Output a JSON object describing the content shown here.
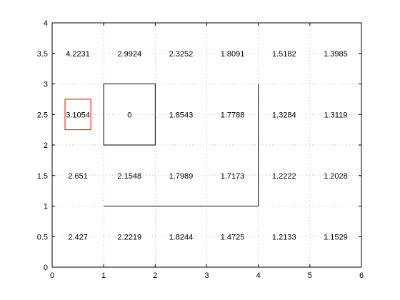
{
  "chart_data": {
    "type": "heatmap",
    "title": "",
    "xlabel": "",
    "ylabel": "",
    "xlim": [
      0,
      6
    ],
    "ylim": [
      0,
      4
    ],
    "grid": true,
    "x_ticks": [
      "0",
      "1",
      "2",
      "3",
      "4",
      "5",
      "6"
    ],
    "y_ticks": [
      "0",
      "0.5",
      "1",
      "1.5",
      "2",
      "2.5",
      "3",
      "3.5",
      "4"
    ],
    "cells": [
      {
        "x": 0.5,
        "y": 3.5,
        "label": "4.2231"
      },
      {
        "x": 1.5,
        "y": 3.5,
        "label": "2.9924"
      },
      {
        "x": 2.5,
        "y": 3.5,
        "label": "2.3252"
      },
      {
        "x": 3.5,
        "y": 3.5,
        "label": "1.8091"
      },
      {
        "x": 4.5,
        "y": 3.5,
        "label": "1.5182"
      },
      {
        "x": 5.5,
        "y": 3.5,
        "label": "1.3985"
      },
      {
        "x": 0.5,
        "y": 2.5,
        "label": "3.1054"
      },
      {
        "x": 1.5,
        "y": 2.5,
        "label": "0"
      },
      {
        "x": 2.5,
        "y": 2.5,
        "label": "1.8543"
      },
      {
        "x": 3.5,
        "y": 2.5,
        "label": "1.7788"
      },
      {
        "x": 4.5,
        "y": 2.5,
        "label": "1.3284"
      },
      {
        "x": 5.5,
        "y": 2.5,
        "label": "1.3119"
      },
      {
        "x": 0.5,
        "y": 1.5,
        "label": "2.651"
      },
      {
        "x": 1.5,
        "y": 1.5,
        "label": "2.1548"
      },
      {
        "x": 2.5,
        "y": 1.5,
        "label": "1.7989"
      },
      {
        "x": 3.5,
        "y": 1.5,
        "label": "1.7173"
      },
      {
        "x": 4.5,
        "y": 1.5,
        "label": "1.2222"
      },
      {
        "x": 5.5,
        "y": 1.5,
        "label": "1.2028"
      },
      {
        "x": 0.5,
        "y": 0.5,
        "label": "2.427"
      },
      {
        "x": 1.5,
        "y": 0.5,
        "label": "2.2219"
      },
      {
        "x": 2.5,
        "y": 0.5,
        "label": "1.8244"
      },
      {
        "x": 3.5,
        "y": 0.5,
        "label": "1.4725"
      },
      {
        "x": 4.5,
        "y": 0.5,
        "label": "1.2133"
      },
      {
        "x": 5.5,
        "y": 0.5,
        "label": "1.1529"
      }
    ],
    "overlays": [
      {
        "kind": "rect",
        "color": "#000000",
        "x": [
          1,
          2
        ],
        "y": [
          2,
          3
        ]
      },
      {
        "kind": "rect",
        "color": "#ff0000",
        "x": [
          0.25,
          0.75
        ],
        "y": [
          2.25,
          2.75
        ]
      },
      {
        "kind": "polyline",
        "color": "#000000",
        "points": [
          [
            1,
            1
          ],
          [
            4,
            1
          ],
          [
            4,
            3
          ]
        ]
      }
    ]
  }
}
